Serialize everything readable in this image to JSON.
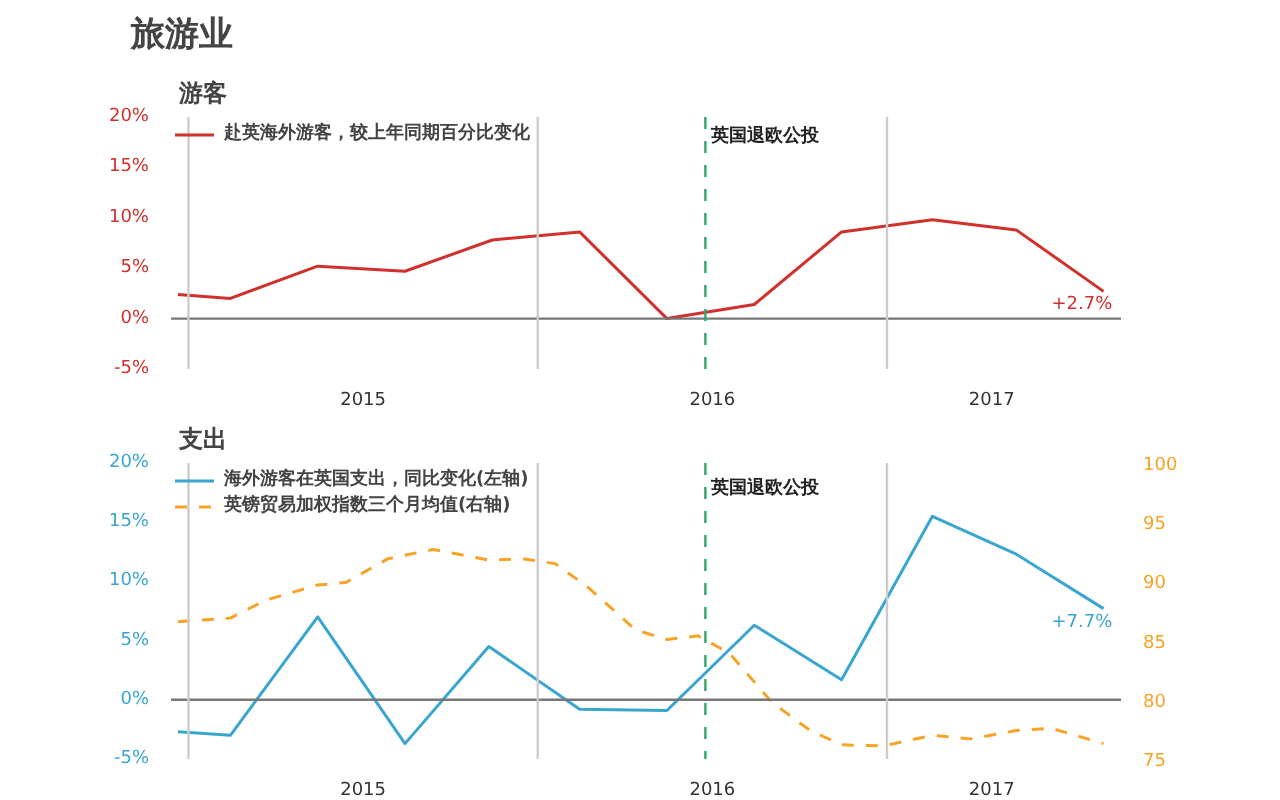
{
  "chart_data": [
    {
      "type": "line",
      "title": "旅游业",
      "subtitle": "游客",
      "x": [
        2014.97,
        2015.12,
        2015.37,
        2015.62,
        2015.87,
        2016.12,
        2016.37,
        2016.62,
        2016.87,
        2017.13,
        2017.37,
        2017.62
      ],
      "series": [
        {
          "name": "赴英海外游客，较上年同期百分比变化",
          "color": "#d0312d",
          "line_style": "solid",
          "values": [
            2.4,
            2.0,
            5.2,
            4.7,
            7.8,
            8.6,
            0,
            1.4,
            8.6,
            9.8,
            8.8,
            2.7
          ]
        }
      ],
      "xlim": [
        2014.95,
        2017.67
      ],
      "xticks": [
        {
          "value": 2015.5,
          "label": "2015"
        },
        {
          "value": 2016.5,
          "label": "2016"
        },
        {
          "value": 2017.3,
          "label": "2017"
        }
      ],
      "ylim": [
        -5,
        20
      ],
      "yticks": [
        {
          "value": -5,
          "label": "-5%"
        },
        {
          "value": 0,
          "label": "0%"
        },
        {
          "value": 5,
          "label": "5%"
        },
        {
          "value": 10,
          "label": "10%"
        },
        {
          "value": 15,
          "label": "15%"
        },
        {
          "value": 20,
          "label": "20%"
        }
      ],
      "ref_lines": [
        {
          "axis": "y",
          "value": 0,
          "label": null,
          "color": "#777777"
        },
        {
          "axis": "x",
          "value": 2015.0,
          "label": null,
          "color": "#cccccc"
        },
        {
          "axis": "x",
          "value": 2016.0,
          "label": null,
          "color": "#cccccc"
        },
        {
          "axis": "x",
          "value": 2017.0,
          "label": null,
          "color": "#cccccc"
        },
        {
          "axis": "x",
          "value": 2016.48,
          "label": "英国退欧公投",
          "color": "#2ea86a",
          "line_style": "dashed"
        }
      ],
      "annotations": [
        {
          "text": "+2.7%",
          "x": 2017.62,
          "y": 2.7
        }
      ],
      "grid": false,
      "legend": "top left",
      "marker": "none"
    },
    {
      "type": "line",
      "title": "支出",
      "x": [
        2014.97,
        2015.12,
        2015.37,
        2015.62,
        2015.86,
        2016.12,
        2016.37,
        2016.62,
        2016.87,
        2017.13,
        2017.37,
        2017.62
      ],
      "series": [
        {
          "name": "海外游客在英国支出，同比变化(左轴)",
          "color": "#3aa6d0",
          "line_style": "solid",
          "values": [
            -2.7,
            -3.0,
            7.0,
            -3.7,
            4.5,
            -0.8,
            -0.9,
            6.3,
            1.7,
            15.5,
            12.3,
            7.7
          ]
        },
        {
          "name": "英镑贸易加权指数三个月均值(右轴)",
          "color": "#f7a328",
          "line_style": "dashed",
          "axis": "y2",
          "x": [
            2014.97,
            2015.12,
            2015.22,
            2015.37,
            2015.45,
            2015.57,
            2015.7,
            2015.86,
            2015.96,
            2016.05,
            2016.14,
            2016.28,
            2016.37,
            2016.46,
            2016.55,
            2016.67,
            2016.78,
            2016.87,
            2016.99,
            2017.13,
            2017.24,
            2017.37,
            2017.47,
            2017.62
          ],
          "values": [
            86.6,
            86.9,
            88.4,
            89.7,
            89.9,
            91.9,
            92.7,
            91.8,
            91.9,
            91.5,
            89.6,
            85.9,
            85.1,
            85.4,
            83.9,
            79.8,
            77.4,
            76.2,
            76.1,
            77.0,
            76.7,
            77.4,
            77.6,
            76.3
          ]
        }
      ],
      "xlim": [
        2014.95,
        2017.67
      ],
      "xticks": [
        {
          "value": 2015.5,
          "label": "2015"
        },
        {
          "value": 2016.5,
          "label": "2016"
        },
        {
          "value": 2017.3,
          "label": "2017"
        }
      ],
      "ylim": [
        -5,
        20
      ],
      "yticks": [
        {
          "value": -5,
          "label": "-5%"
        },
        {
          "value": 0,
          "label": "0%"
        },
        {
          "value": 5,
          "label": "5%"
        },
        {
          "value": 10,
          "label": "10%"
        },
        {
          "value": 15,
          "label": "15%"
        },
        {
          "value": 20,
          "label": "20%"
        }
      ],
      "y2lim": [
        75,
        100
      ],
      "y2ticks": [
        75,
        80,
        85,
        90,
        95,
        100
      ],
      "ref_lines": [
        {
          "axis": "y",
          "value": 0,
          "label": null,
          "color": "#777777"
        },
        {
          "axis": "x",
          "value": 2015.0,
          "label": null,
          "color": "#cccccc"
        },
        {
          "axis": "x",
          "value": 2016.0,
          "label": null,
          "color": "#cccccc"
        },
        {
          "axis": "x",
          "value": 2017.0,
          "label": null,
          "color": "#cccccc"
        },
        {
          "axis": "x",
          "value": 2016.48,
          "label": "英国退欧公投",
          "color": "#2ea86a",
          "line_style": "dashed"
        }
      ],
      "annotations": [
        {
          "text": "+7.7%",
          "x": 2017.62,
          "y": 7.7
        }
      ],
      "grid": false,
      "legend": "top left",
      "marker": "none"
    }
  ]
}
